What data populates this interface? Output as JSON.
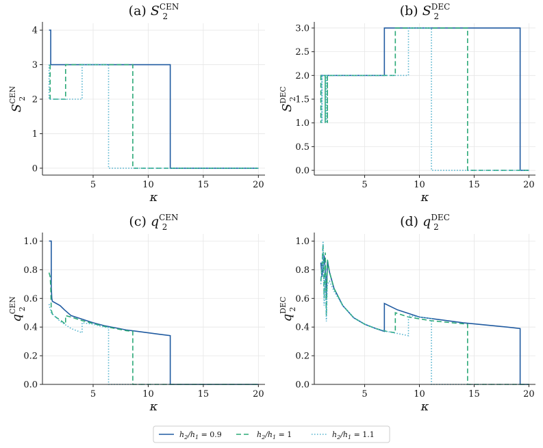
{
  "chart_data": [
    {
      "type": "line",
      "title_prefix": "(a)",
      "title_main": "S",
      "title_sub": "2",
      "title_sup": "CEN",
      "xlabel": "κ",
      "ylabel_main": "S",
      "ylabel_sub": "2",
      "ylabel_sup": "CEN",
      "xlim": [
        0.4,
        20.6
      ],
      "ylim": [
        -0.2,
        4.2
      ],
      "xticks": [
        5,
        10,
        15,
        20
      ],
      "xtick_labels": [
        "5",
        "10",
        "15",
        "20"
      ],
      "yticks": [
        0,
        1,
        2,
        3,
        4
      ],
      "ytick_labels": [
        "0",
        "1",
        "2",
        "3",
        "4"
      ],
      "grid": true,
      "series": [
        {
          "name": "h2/h1 = 0.9",
          "style": "solid",
          "color": "#1f5aa0",
          "x": [
            1.0,
            1.15,
            1.15,
            12.0,
            12.0,
            20.0
          ],
          "y": [
            4,
            4,
            3,
            3,
            0,
            0
          ]
        },
        {
          "name": "h2/h1 = 1",
          "style": "dashed",
          "color": "#2aa876",
          "x": [
            1.1,
            1.1,
            2.5,
            2.5,
            8.6,
            8.6,
            20.0
          ],
          "y": [
            3,
            2,
            2,
            3,
            3,
            0,
            0
          ]
        },
        {
          "name": "h2/h1 = 1.1",
          "style": "dotted",
          "color": "#4db0cc",
          "x": [
            1.0,
            1.0,
            4.0,
            4.0,
            6.4,
            6.4,
            20.0
          ],
          "y": [
            3,
            2,
            2,
            3,
            3,
            0,
            0
          ]
        }
      ]
    },
    {
      "type": "line",
      "title_prefix": "(b)",
      "title_main": "S",
      "title_sub": "2",
      "title_sup": "DEC",
      "xlabel": "κ",
      "ylabel_main": "S",
      "ylabel_sub": "2",
      "ylabel_sup": "DEC",
      "xlim": [
        0.4,
        20.6
      ],
      "ylim": [
        -0.1,
        3.1
      ],
      "xticks": [
        5,
        10,
        15,
        20
      ],
      "xtick_labels": [
        "5",
        "10",
        "15",
        "20"
      ],
      "yticks": [
        0,
        0.5,
        1,
        1.5,
        2,
        2.5,
        3
      ],
      "ytick_labels": [
        "0.0",
        "0.5",
        "1.0",
        "1.5",
        "2.0",
        "2.5",
        "3.0"
      ],
      "grid": true,
      "series": [
        {
          "name": "h2/h1 = 0.9",
          "style": "solid",
          "color": "#1f5aa0",
          "x": [
            1.0,
            6.8,
            6.8,
            19.2,
            19.2,
            20.0
          ],
          "y": [
            2,
            2,
            3,
            3,
            0,
            0
          ]
        },
        {
          "name": "h2/h1 = 1",
          "style": "dashed",
          "color": "#2aa876",
          "x": [
            1.0,
            1.0,
            1.0,
            1.4,
            1.4,
            1.4,
            1.6,
            1.6,
            1.6,
            7.8,
            7.8,
            14.4,
            14.4,
            20.0
          ],
          "y": [
            2,
            1,
            2,
            2,
            1,
            2,
            2,
            1,
            2,
            2,
            3,
            3,
            0,
            0
          ]
        },
        {
          "name": "h2/h1 = 1.1",
          "style": "dotted",
          "color": "#4db0cc",
          "x": [
            1.1,
            1.1,
            1.1,
            1.5,
            1.5,
            1.5,
            9.0,
            9.0,
            11.1,
            11.1,
            20.0
          ],
          "y": [
            2,
            1,
            2,
            2,
            1,
            2,
            2,
            3,
            3,
            0,
            0
          ]
        }
      ]
    },
    {
      "type": "line",
      "title_prefix": "(c)",
      "title_main": "q",
      "title_sub": "2",
      "title_sup": "CEN",
      "xlabel": "κ",
      "ylabel_main": "q",
      "ylabel_sub": "2",
      "ylabel_sup": "CEN",
      "xlim": [
        0.4,
        20.6
      ],
      "ylim": [
        0,
        1.05
      ],
      "xticks": [
        5,
        10,
        15,
        20
      ],
      "xtick_labels": [
        "5",
        "10",
        "15",
        "20"
      ],
      "yticks": [
        0,
        0.2,
        0.4,
        0.6,
        0.8,
        1.0
      ],
      "ytick_labels": [
        "0.0",
        "0.2",
        "0.4",
        "0.6",
        "0.8",
        "1.0"
      ],
      "grid": true,
      "series": [
        {
          "name": "h2/h1 = 0.9",
          "style": "solid",
          "color": "#1f5aa0",
          "x": [
            1.0,
            1.2,
            1.2,
            1.25,
            1.3,
            2.0,
            2.4,
            3.0,
            4.0,
            5.0,
            6.0,
            7.0,
            8.0,
            9.0,
            10.0,
            11.0,
            12.0,
            12.0,
            20.0
          ],
          "y": [
            1.0,
            1.0,
            0.68,
            0.6,
            0.58,
            0.55,
            0.52,
            0.48,
            0.455,
            0.43,
            0.41,
            0.395,
            0.38,
            0.37,
            0.36,
            0.35,
            0.34,
            0,
            0
          ]
        },
        {
          "name": "h2/h1 = 1",
          "style": "dashed",
          "color": "#2aa876",
          "x": [
            1.0,
            1.1,
            1.15,
            1.2,
            1.3,
            1.6,
            2.0,
            2.5,
            2.5,
            3.0,
            4.0,
            5.0,
            6.0,
            7.0,
            8.0,
            8.6,
            8.6,
            20.0
          ],
          "y": [
            0.78,
            0.75,
            0.68,
            0.52,
            0.49,
            0.47,
            0.45,
            0.42,
            0.48,
            0.47,
            0.445,
            0.425,
            0.405,
            0.39,
            0.375,
            0.37,
            0,
            0
          ]
        },
        {
          "name": "h2/h1 = 1.1",
          "style": "dotted",
          "color": "#4db0cc",
          "x": [
            1.0,
            1.05,
            1.2,
            2.0,
            3.0,
            4.0,
            4.0,
            5.0,
            6.0,
            6.4,
            6.4,
            20.0
          ],
          "y": [
            0.56,
            0.54,
            0.5,
            0.44,
            0.39,
            0.36,
            0.43,
            0.42,
            0.4,
            0.395,
            0,
            0
          ]
        }
      ]
    },
    {
      "type": "line",
      "title_prefix": "(d)",
      "title_main": "q",
      "title_sub": "2",
      "title_sup": "DEC",
      "xlabel": "κ",
      "ylabel_main": "q",
      "ylabel_sub": "2",
      "ylabel_sup": "DEC",
      "xlim": [
        0.4,
        20.6
      ],
      "ylim": [
        0,
        1.05
      ],
      "xticks": [
        5,
        10,
        15,
        20
      ],
      "xtick_labels": [
        "5",
        "10",
        "15",
        "20"
      ],
      "yticks": [
        0,
        0.2,
        0.4,
        0.6,
        0.8,
        1.0
      ],
      "ytick_labels": [
        "0.0",
        "0.2",
        "0.4",
        "0.6",
        "0.8",
        "1.0"
      ],
      "grid": true,
      "series": [
        {
          "name": "h2/h1 = 0.9",
          "style": "solid",
          "color": "#1f5aa0",
          "x": [
            1.0,
            1.1,
            1.2,
            1.3,
            1.4,
            1.5,
            1.6,
            1.8,
            2.2,
            3.0,
            4.0,
            5.0,
            6.0,
            6.8,
            6.8,
            8.0,
            10.0,
            12.0,
            14.0,
            16.0,
            18.0,
            19.2,
            19.2,
            20.0
          ],
          "y": [
            0.85,
            0.75,
            0.82,
            0.9,
            0.8,
            0.62,
            0.86,
            0.78,
            0.67,
            0.55,
            0.465,
            0.42,
            0.39,
            0.37,
            0.565,
            0.52,
            0.47,
            0.45,
            0.43,
            0.415,
            0.4,
            0.39,
            0,
            0
          ]
        },
        {
          "name": "h2/h1 = 1",
          "style": "dashed",
          "color": "#2aa876",
          "x": [
            1.0,
            1.1,
            1.2,
            1.3,
            1.4,
            1.5,
            1.6,
            1.8,
            2.2,
            3.0,
            4.0,
            5.0,
            6.0,
            7.0,
            7.8,
            7.8,
            9.0,
            11.0,
            13.0,
            14.4,
            14.4,
            20.0
          ],
          "y": [
            0.72,
            0.82,
            0.98,
            0.6,
            0.92,
            0.48,
            0.87,
            0.78,
            0.67,
            0.55,
            0.465,
            0.42,
            0.39,
            0.37,
            0.36,
            0.5,
            0.47,
            0.445,
            0.43,
            0.42,
            0,
            0
          ]
        },
        {
          "name": "h2/h1 = 1.1",
          "style": "dotted",
          "color": "#4db0cc",
          "x": [
            1.0,
            1.1,
            1.2,
            1.3,
            1.4,
            1.5,
            1.6,
            1.8,
            2.2,
            3.0,
            4.0,
            5.0,
            6.0,
            7.0,
            8.0,
            9.0,
            9.0,
            10.0,
            11.1,
            11.1,
            20.0
          ],
          "y": [
            0.7,
            0.79,
            1.0,
            0.55,
            0.76,
            0.44,
            0.7,
            0.72,
            0.65,
            0.55,
            0.465,
            0.42,
            0.39,
            0.37,
            0.355,
            0.34,
            0.48,
            0.47,
            0.46,
            0,
            0
          ]
        }
      ]
    }
  ],
  "legend": {
    "items": [
      {
        "prefix": "h",
        "sub1": "2",
        "mid": "/h",
        "sub2": "1",
        "value": " = 0.9",
        "style": "solid",
        "color": "#1f5aa0"
      },
      {
        "prefix": "h",
        "sub1": "2",
        "mid": "/h",
        "sub2": "1",
        "value": " = 1",
        "style": "dashed",
        "color": "#2aa876"
      },
      {
        "prefix": "h",
        "sub1": "2",
        "mid": "/h",
        "sub2": "1",
        "value": " = 1.1",
        "style": "dotted",
        "color": "#4db0cc"
      }
    ]
  }
}
